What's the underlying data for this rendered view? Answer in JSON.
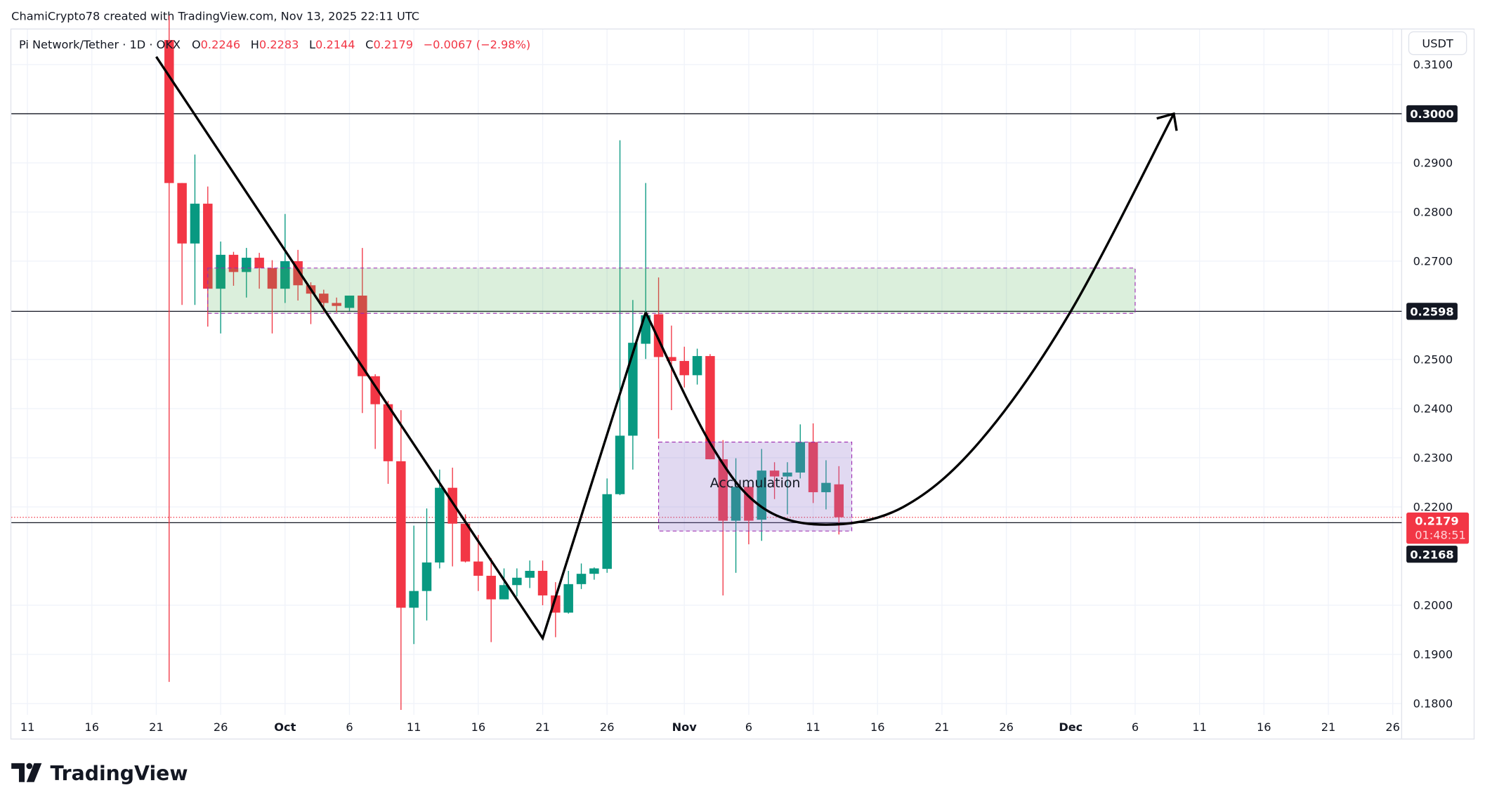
{
  "attribution": "ChamiCrypto78 created with TradingView.com, Nov 13, 2025 22:11 UTC",
  "legend": {
    "symbol": "Pi Network/Tether · 1D · OKX",
    "o_label": "O",
    "o_value": "0.2246",
    "h_label": "H",
    "h_value": "0.2283",
    "l_label": "L",
    "l_value": "0.2144",
    "c_label": "C",
    "c_value": "0.2179",
    "change": "−0.0067 (−2.98%)"
  },
  "currency_button": "USDT",
  "logo_text": "TradingView",
  "colors": {
    "up": "#089981",
    "down": "#f23645",
    "zone_green": "#4caf50",
    "zone_purple": "#9575cd",
    "zone_border": "#9c27b0",
    "drawing": "#000000",
    "grid": "#f0f3fa"
  },
  "price_axis": {
    "ticks": [
      "0.3100",
      "0.2900",
      "0.2800",
      "0.2700",
      "0.2500",
      "0.2400",
      "0.2300",
      "0.2200",
      "0.2000",
      "0.1900",
      "0.1800"
    ],
    "tick_values": [
      0.31,
      0.29,
      0.28,
      0.27,
      0.25,
      0.24,
      0.23,
      0.22,
      0.2,
      0.19,
      0.18
    ],
    "level_labels": [
      {
        "text": "0.3000",
        "price": 0.3
      },
      {
        "text": "0.2598",
        "price": 0.2598
      },
      {
        "text": "0.2168",
        "price": 0.2168
      }
    ],
    "last_price": {
      "text": "0.2179",
      "price": 0.2179,
      "countdown": "01:48:51"
    }
  },
  "time_axis": {
    "labels": [
      {
        "text": "11",
        "date": "2025-09-11"
      },
      {
        "text": "16",
        "date": "2025-09-16"
      },
      {
        "text": "21",
        "date": "2025-09-21"
      },
      {
        "text": "26",
        "date": "2025-09-26"
      },
      {
        "text": "Oct",
        "date": "2025-10-01",
        "bold": true
      },
      {
        "text": "6",
        "date": "2025-10-06"
      },
      {
        "text": "11",
        "date": "2025-10-11"
      },
      {
        "text": "16",
        "date": "2025-10-16"
      },
      {
        "text": "21",
        "date": "2025-10-21"
      },
      {
        "text": "26",
        "date": "2025-10-26"
      },
      {
        "text": "Nov",
        "date": "2025-11-01",
        "bold": true
      },
      {
        "text": "6",
        "date": "2025-11-06"
      },
      {
        "text": "11",
        "date": "2025-11-11"
      },
      {
        "text": "16",
        "date": "2025-11-16"
      },
      {
        "text": "21",
        "date": "2025-11-21"
      },
      {
        "text": "26",
        "date": "2025-11-26"
      },
      {
        "text": "Dec",
        "date": "2025-12-01",
        "bold": true
      },
      {
        "text": "6",
        "date": "2025-12-06"
      },
      {
        "text": "11",
        "date": "2025-12-11"
      },
      {
        "text": "16",
        "date": "2025-12-16"
      },
      {
        "text": "21",
        "date": "2025-12-21"
      },
      {
        "text": "26",
        "date": "2025-12-26"
      }
    ]
  },
  "chart_data": {
    "type": "candlestick",
    "title": "Pi Network/Tether · 1D · OKX",
    "ylabel": "USDT",
    "ylim": [
      0.178,
      0.312
    ],
    "xlim": [
      "2025-09-10",
      "2025-12-28"
    ],
    "grid": true,
    "candles": [
      {
        "date": "2025-09-22",
        "o": 0.315,
        "h": 0.32,
        "l": 0.1844,
        "c": 0.2859
      },
      {
        "date": "2025-09-23",
        "o": 0.2859,
        "h": 0.2859,
        "l": 0.2611,
        "c": 0.2736
      },
      {
        "date": "2025-09-24",
        "o": 0.2736,
        "h": 0.2917,
        "l": 0.2611,
        "c": 0.2817
      },
      {
        "date": "2025-09-25",
        "o": 0.2817,
        "h": 0.2852,
        "l": 0.2567,
        "c": 0.2644
      },
      {
        "date": "2025-09-26",
        "o": 0.2644,
        "h": 0.274,
        "l": 0.2553,
        "c": 0.2713
      },
      {
        "date": "2025-09-27",
        "o": 0.2713,
        "h": 0.2719,
        "l": 0.265,
        "c": 0.2678
      },
      {
        "date": "2025-09-28",
        "o": 0.2678,
        "h": 0.2727,
        "l": 0.2626,
        "c": 0.2707
      },
      {
        "date": "2025-09-29",
        "o": 0.2707,
        "h": 0.2717,
        "l": 0.2644,
        "c": 0.2686
      },
      {
        "date": "2025-09-30",
        "o": 0.2686,
        "h": 0.2702,
        "l": 0.2553,
        "c": 0.2644
      },
      {
        "date": "2025-10-01",
        "o": 0.2644,
        "h": 0.2796,
        "l": 0.2615,
        "c": 0.27
      },
      {
        "date": "2025-10-02",
        "o": 0.27,
        "h": 0.2723,
        "l": 0.262,
        "c": 0.2651
      },
      {
        "date": "2025-10-03",
        "o": 0.2651,
        "h": 0.2657,
        "l": 0.2572,
        "c": 0.2634
      },
      {
        "date": "2025-10-04",
        "o": 0.2634,
        "h": 0.2642,
        "l": 0.2596,
        "c": 0.2615
      },
      {
        "date": "2025-10-05",
        "o": 0.2615,
        "h": 0.2626,
        "l": 0.2596,
        "c": 0.2609
      },
      {
        "date": "2025-10-06",
        "o": 0.2605,
        "h": 0.263,
        "l": 0.2599,
        "c": 0.263
      },
      {
        "date": "2025-10-07",
        "o": 0.263,
        "h": 0.2727,
        "l": 0.2391,
        "c": 0.2466
      },
      {
        "date": "2025-10-08",
        "o": 0.2466,
        "h": 0.247,
        "l": 0.2318,
        "c": 0.2409
      },
      {
        "date": "2025-10-09",
        "o": 0.2409,
        "h": 0.2416,
        "l": 0.2247,
        "c": 0.2293
      },
      {
        "date": "2025-10-10",
        "o": 0.2293,
        "h": 0.2397,
        "l": 0.1787,
        "c": 0.1995
      },
      {
        "date": "2025-10-11",
        "o": 0.1995,
        "h": 0.2162,
        "l": 0.1921,
        "c": 0.2029
      },
      {
        "date": "2025-10-12",
        "o": 0.2029,
        "h": 0.2197,
        "l": 0.1969,
        "c": 0.2087
      },
      {
        "date": "2025-10-13",
        "o": 0.2087,
        "h": 0.2276,
        "l": 0.2075,
        "c": 0.2239
      },
      {
        "date": "2025-10-14",
        "o": 0.2239,
        "h": 0.228,
        "l": 0.2079,
        "c": 0.2166
      },
      {
        "date": "2025-10-15",
        "o": 0.2166,
        "h": 0.2185,
        "l": 0.2087,
        "c": 0.2089
      },
      {
        "date": "2025-10-16",
        "o": 0.2089,
        "h": 0.2143,
        "l": 0.2029,
        "c": 0.206
      },
      {
        "date": "2025-10-17",
        "o": 0.206,
        "h": 0.2096,
        "l": 0.1925,
        "c": 0.2012
      },
      {
        "date": "2025-10-18",
        "o": 0.2012,
        "h": 0.2075,
        "l": 0.2012,
        "c": 0.2041
      },
      {
        "date": "2025-10-19",
        "o": 0.2041,
        "h": 0.2075,
        "l": 0.2018,
        "c": 0.2056
      },
      {
        "date": "2025-10-20",
        "o": 0.2056,
        "h": 0.2091,
        "l": 0.2035,
        "c": 0.207
      },
      {
        "date": "2025-10-21",
        "o": 0.207,
        "h": 0.2091,
        "l": 0.2,
        "c": 0.202
      },
      {
        "date": "2025-10-22",
        "o": 0.202,
        "h": 0.2047,
        "l": 0.1935,
        "c": 0.1985
      },
      {
        "date": "2025-10-23",
        "o": 0.1985,
        "h": 0.207,
        "l": 0.1983,
        "c": 0.2043
      },
      {
        "date": "2025-10-24",
        "o": 0.2043,
        "h": 0.2085,
        "l": 0.2033,
        "c": 0.2064
      },
      {
        "date": "2025-10-25",
        "o": 0.2064,
        "h": 0.2077,
        "l": 0.2052,
        "c": 0.2075
      },
      {
        "date": "2025-10-26",
        "o": 0.2074,
        "h": 0.2258,
        "l": 0.2066,
        "c": 0.2226
      },
      {
        "date": "2025-10-27",
        "o": 0.2226,
        "h": 0.2946,
        "l": 0.2224,
        "c": 0.2345
      },
      {
        "date": "2025-10-28",
        "o": 0.2345,
        "h": 0.2621,
        "l": 0.2276,
        "c": 0.2534
      },
      {
        "date": "2025-10-29",
        "o": 0.2532,
        "h": 0.2859,
        "l": 0.2501,
        "c": 0.259
      },
      {
        "date": "2025-10-30",
        "o": 0.2592,
        "h": 0.2667,
        "l": 0.2339,
        "c": 0.2505
      },
      {
        "date": "2025-10-31",
        "o": 0.2505,
        "h": 0.2569,
        "l": 0.2397,
        "c": 0.2497
      },
      {
        "date": "2025-11-01",
        "o": 0.2497,
        "h": 0.2526,
        "l": 0.2443,
        "c": 0.2468
      },
      {
        "date": "2025-11-02",
        "o": 0.2468,
        "h": 0.2522,
        "l": 0.2449,
        "c": 0.2507
      },
      {
        "date": "2025-11-03",
        "o": 0.2507,
        "h": 0.2511,
        "l": 0.2297,
        "c": 0.2297
      },
      {
        "date": "2025-11-04",
        "o": 0.2297,
        "h": 0.2336,
        "l": 0.202,
        "c": 0.2172
      },
      {
        "date": "2025-11-05",
        "o": 0.2172,
        "h": 0.2299,
        "l": 0.2066,
        "c": 0.2241
      },
      {
        "date": "2025-11-06",
        "o": 0.2241,
        "h": 0.2243,
        "l": 0.2124,
        "c": 0.2172
      },
      {
        "date": "2025-11-07",
        "o": 0.2174,
        "h": 0.2318,
        "l": 0.2131,
        "c": 0.2274
      },
      {
        "date": "2025-11-08",
        "o": 0.2274,
        "h": 0.2291,
        "l": 0.2216,
        "c": 0.2262
      },
      {
        "date": "2025-11-09",
        "o": 0.2262,
        "h": 0.2291,
        "l": 0.2185,
        "c": 0.227
      },
      {
        "date": "2025-11-10",
        "o": 0.227,
        "h": 0.2368,
        "l": 0.2258,
        "c": 0.2332
      },
      {
        "date": "2025-11-11",
        "o": 0.2332,
        "h": 0.237,
        "l": 0.2208,
        "c": 0.223
      },
      {
        "date": "2025-11-12",
        "o": 0.223,
        "h": 0.2295,
        "l": 0.2195,
        "c": 0.2249
      },
      {
        "date": "2025-11-13",
        "o": 0.2246,
        "h": 0.2283,
        "l": 0.2144,
        "c": 0.2179
      }
    ],
    "drawings": {
      "horizontal_levels": [
        0.3,
        0.2598,
        0.2168
      ],
      "green_zone": {
        "from": "2025-09-25",
        "to": "2025-12-06",
        "top": 0.2686,
        "bottom": 0.2594
      },
      "accumulation_box": {
        "label": "Accumulation",
        "from": "2025-10-30",
        "to": "2025-11-14",
        "top": 0.2332,
        "bottom": 0.2151
      },
      "zigzag": [
        [
          "2025-09-21",
          0.3116
        ],
        [
          "2025-10-21",
          0.1933
        ],
        [
          "2025-10-29",
          0.2596
        ]
      ],
      "curve_arrow": [
        [
          "2025-10-29",
          0.2596
        ],
        [
          "2025-11-03",
          0.233
        ],
        [
          "2025-11-07",
          0.22
        ],
        [
          "2025-11-12",
          0.2164
        ],
        [
          "2025-11-18",
          0.22
        ],
        [
          "2025-11-24",
          0.2335
        ],
        [
          "2025-12-01",
          0.2598
        ],
        [
          "2025-12-09",
          0.3
        ]
      ]
    }
  }
}
